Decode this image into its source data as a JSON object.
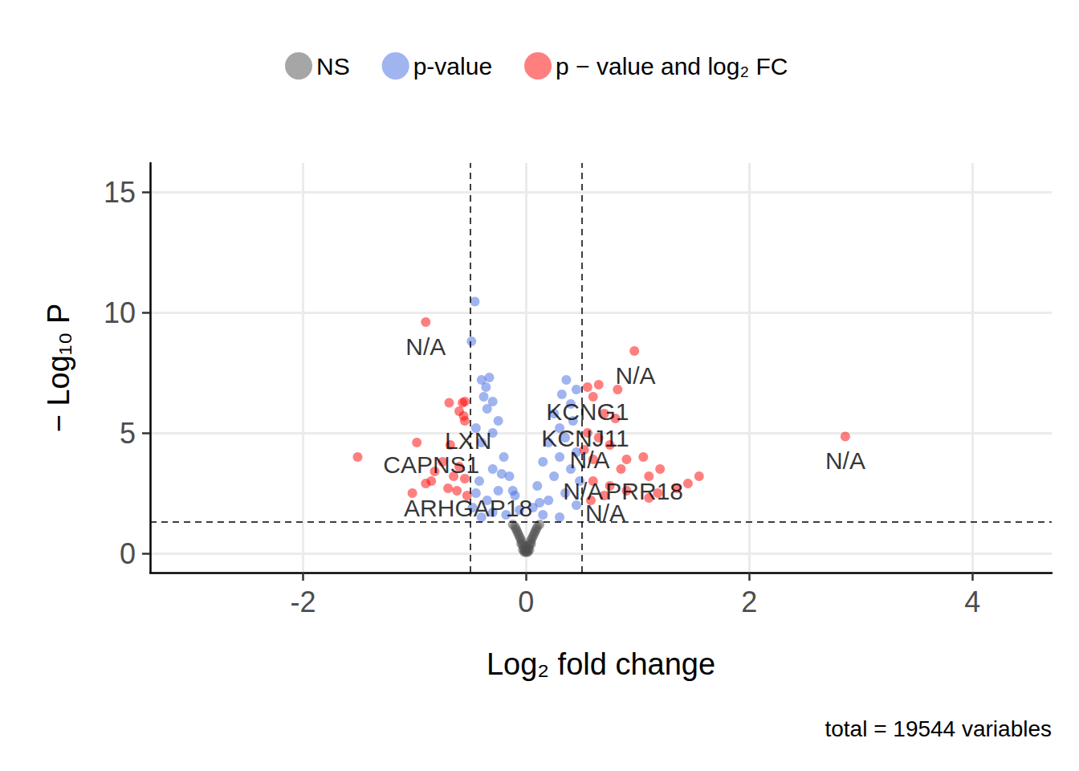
{
  "chart_data": {
    "type": "scatter",
    "x_label": "Log₂ fold change",
    "y_label": "− Log₁₀ P",
    "caption": "total = 19544 variables",
    "legend": "top",
    "grid": true,
    "xlim": [
      -3.37,
      4.71
    ],
    "xticks": [
      -2,
      0,
      2,
      4
    ],
    "ylim": [
      -0.8,
      16.2
    ],
    "yticks": [
      0,
      5,
      10,
      15
    ],
    "vlines": [
      -0.5,
      0.5
    ],
    "hline": 1.3,
    "series": [
      {
        "name": "NS",
        "color": "#4d4d4d",
        "x": [
          -0.12,
          -0.1,
          -0.08,
          -0.06,
          -0.05,
          -0.04,
          -0.03,
          -0.02,
          -0.01,
          0,
          0.01,
          0.02,
          0.03,
          0.04,
          0.05,
          0.06,
          0.08,
          0.1,
          0.12,
          -0.07,
          0.07,
          -0.03,
          0.03,
          0,
          -0.015,
          0.015,
          -0.09,
          0.09,
          -0.045,
          0.045
        ],
        "values": [
          1.2,
          1.1,
          0.9,
          0.7,
          0.6,
          0.5,
          0.35,
          0.2,
          0.1,
          0.05,
          0.1,
          0.2,
          0.35,
          0.5,
          0.6,
          0.7,
          0.9,
          1.1,
          1.2,
          0.8,
          0.8,
          0.15,
          0.15,
          0.3,
          0.05,
          0.05,
          1.0,
          1.0,
          0.4,
          0.4
        ]
      },
      {
        "name": "p-value",
        "color": "#4169e1",
        "x": [
          -0.46,
          -0.49,
          -0.4,
          -0.33,
          -0.36,
          -0.38,
          -0.3,
          -0.35,
          -0.25,
          -0.45,
          -0.3,
          -0.4,
          -0.2,
          -0.15,
          -0.3,
          -0.42,
          -0.1,
          -0.25,
          -0.35,
          -0.45,
          -0.06,
          -0.18,
          -0.3,
          -0.4,
          -0.48,
          0.36,
          0.32,
          0.45,
          0.4,
          0.25,
          0.42,
          0.3,
          0.2,
          0.35,
          0.15,
          0.3,
          0.45,
          0.1,
          0.25,
          0.4,
          0.06,
          0.2,
          0.35,
          0.45,
          0.15,
          0.3,
          0.48,
          0.12,
          -0.12,
          -0.22
        ],
        "values": [
          10.45,
          8.8,
          7.2,
          7.3,
          6.9,
          6.5,
          6.3,
          6.0,
          5.5,
          5.2,
          5.0,
          4.6,
          4.0,
          3.2,
          3.5,
          3.0,
          2.4,
          2.6,
          2.2,
          2.5,
          1.8,
          1.6,
          1.7,
          1.5,
          1.9,
          7.2,
          6.6,
          6.8,
          6.2,
          5.8,
          5.5,
          5.2,
          4.6,
          4.8,
          3.8,
          4.0,
          4.2,
          2.8,
          3.2,
          3.5,
          1.9,
          2.2,
          2.5,
          2.0,
          1.6,
          1.5,
          3.0,
          2.1,
          2.6,
          3.3
        ]
      },
      {
        "name": "p − value and log₂ FC",
        "color": "#ff0000",
        "x": [
          -0.9,
          -0.69,
          -0.55,
          -0.57,
          -0.6,
          -0.56,
          -0.55,
          -0.98,
          -1.51,
          -0.68,
          -0.75,
          -0.6,
          -0.82,
          -0.9,
          -0.85,
          -1.02,
          -0.7,
          -0.62,
          -0.53,
          -0.55,
          -0.65,
          0.97,
          0.82,
          0.65,
          0.55,
          0.6,
          0.8,
          0.7,
          0.55,
          0.75,
          0.65,
          0.9,
          1.05,
          1.2,
          1.1,
          0.85,
          0.6,
          0.75,
          1.55,
          1.45,
          1.35,
          1.18,
          1.1,
          0.9,
          0.7,
          0.58,
          2.86,
          0.52,
          0.6
        ],
        "values": [
          9.6,
          6.25,
          6.3,
          6.25,
          5.9,
          5.7,
          5.5,
          4.6,
          4.0,
          4.5,
          3.8,
          3.6,
          3.4,
          2.9,
          3.0,
          2.5,
          2.7,
          2.6,
          2.4,
          3.1,
          3.2,
          8.4,
          6.8,
          7.0,
          6.9,
          6.5,
          5.6,
          5.8,
          5.0,
          4.5,
          4.8,
          3.9,
          4.0,
          3.5,
          3.2,
          3.5,
          3.0,
          2.8,
          3.2,
          2.9,
          2.7,
          2.5,
          2.3,
          2.6,
          2.4,
          2.2,
          4.85,
          4.3,
          3.9
        ]
      }
    ],
    "annotations": [
      {
        "text": "N/A",
        "x": -0.9,
        "y": 8.6
      },
      {
        "text": "N/A",
        "x": 0.98,
        "y": 7.4
      },
      {
        "text": "KCNG1",
        "x": 0.55,
        "y": 5.9
      },
      {
        "text": "KCNJ11",
        "x": 0.53,
        "y": 4.8
      },
      {
        "text": "LXN",
        "x": -0.52,
        "y": 4.7
      },
      {
        "text": "N/A",
        "x": 0.57,
        "y": 3.9
      },
      {
        "text": "CAPNS1",
        "x": -0.85,
        "y": 3.7
      },
      {
        "text": "N/A",
        "x": 2.86,
        "y": 3.85
      },
      {
        "text": "N/A",
        "x": 0.51,
        "y": 2.6
      },
      {
        "text": "PRR18",
        "x": 1.06,
        "y": 2.6
      },
      {
        "text": "ARHGAP18",
        "x": -0.52,
        "y": 1.9
      },
      {
        "text": "N/A",
        "x": 0.71,
        "y": 1.7
      }
    ]
  }
}
